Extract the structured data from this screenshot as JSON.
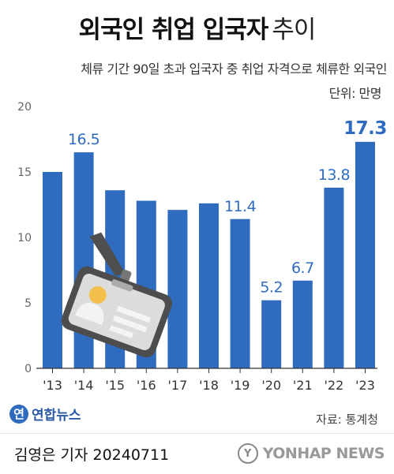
{
  "title_bold": "외국인 취업 입국자",
  "title_light": "추이",
  "subtitle": "체류 기간 90일 초과 입국자 중 취업 자격으로 체류한 외국인",
  "unit": "단위: 만명",
  "source": "자료: 통계청",
  "logo": {
    "mark": "연",
    "text": "연합뉴스"
  },
  "byline": "김영은 기자  20240711",
  "watermark": {
    "mark": "Y",
    "text": "YONHAP NEWS"
  },
  "colors": {
    "bar": "#2f6cc0",
    "highlight_label": "#2f6cc0",
    "badge_bg": "#4d4d4d",
    "badge_accent": "#f3c04b"
  },
  "illustration_icon": "id-badge-lanyard-icon",
  "chart_data": {
    "type": "bar",
    "categories": [
      "'13",
      "'14",
      "'15",
      "'16",
      "'17",
      "'18",
      "'19",
      "'20",
      "'21",
      "'22",
      "'23"
    ],
    "values": [
      15.0,
      16.5,
      13.6,
      12.8,
      12.1,
      12.6,
      11.4,
      5.2,
      6.7,
      13.8,
      17.3
    ],
    "data_labels": [
      "",
      "16.5",
      "",
      "",
      "",
      "",
      "11.4",
      "5.2",
      "6.7",
      "13.8",
      "17.3"
    ],
    "ylim": [
      0,
      20
    ],
    "yticks": [
      "0",
      "5",
      "10",
      "15",
      "20"
    ],
    "ytick_values": [
      0,
      5,
      10,
      15,
      20
    ],
    "grid": false
  }
}
